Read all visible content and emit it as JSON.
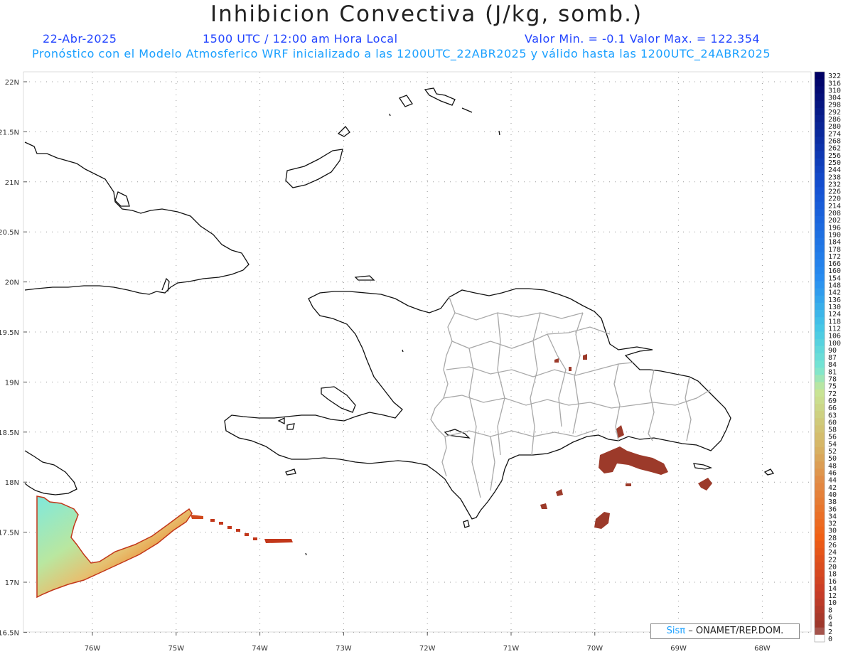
{
  "header": {
    "title": "Inhibicion Convectiva (J/kg, somb.)",
    "date": "22-Abr-2025",
    "time": "1500 UTC / 12:00 am Hora Local",
    "minmax": "Valor Min. = -0.1  Valor Max. = 122.354",
    "model_info": "Pronóstico con el Modelo Atmosferico WRF inicializado a las 1200UTC_22ABR2025 y válido hasta las  1200UTC_24ABR2025"
  },
  "map": {
    "lat_labels": [
      "22N",
      "21.5N",
      "21N",
      "20.5N",
      "20N",
      "19.5N",
      "19N",
      "18.5N",
      "18N",
      "17.5N",
      "17N",
      "16.5N"
    ],
    "lon_labels": [
      "76W",
      "75W",
      "74W",
      "73W",
      "72W",
      "71W",
      "70W",
      "69W",
      "68W"
    ],
    "colors": {
      "coast": "#111111",
      "province": "#a8a8a8",
      "grid": "#9a9a9a",
      "cin_low": "#9c3a2a"
    }
  },
  "colorbar": {
    "labels": [
      "322",
      "316",
      "310",
      "304",
      "298",
      "292",
      "286",
      "280",
      "274",
      "268",
      "262",
      "256",
      "250",
      "244",
      "238",
      "232",
      "226",
      "220",
      "214",
      "208",
      "202",
      "196",
      "190",
      "184",
      "178",
      "172",
      "166",
      "160",
      "154",
      "148",
      "142",
      "136",
      "130",
      "124",
      "118",
      "112",
      "106",
      "100",
      "90",
      "87",
      "84",
      "81",
      "78",
      "75",
      "72",
      "69",
      "66",
      "63",
      "60",
      "58",
      "56",
      "54",
      "52",
      "50",
      "48",
      "46",
      "44",
      "42",
      "40",
      "38",
      "36",
      "34",
      "32",
      "30",
      "28",
      "26",
      "24",
      "22",
      "20",
      "18",
      "16",
      "14",
      "12",
      "10",
      "8",
      "6",
      "4",
      "2",
      "0"
    ]
  },
  "credit": {
    "sis": "Sisπ",
    "rest": "– ONAMET/REP.DOM."
  }
}
